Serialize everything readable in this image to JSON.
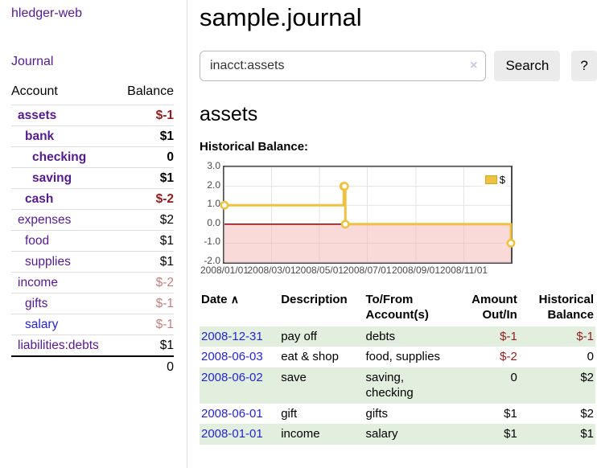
{
  "colors": {
    "link_purple": "#551a8b",
    "link_blue": "#2525cc",
    "negative_strong": "#8f1d1d",
    "negative_soft": "#c17f7f",
    "row_stripe_green": "#e2efdf",
    "chart_line_yellow": "#edc240",
    "chart_negative_pink": "#f5b4b4",
    "chart_zero_line": "#8b0000",
    "button_gray": "#ebebeb"
  },
  "sidebar": {
    "brand": "hledger-web",
    "journal_link": "Journal",
    "accounts_table": {
      "headers": {
        "account": "Account",
        "balance": "Balance"
      },
      "rows": [
        {
          "name": "assets",
          "depth": 1,
          "bold": true,
          "link": "purple",
          "balance": "$-1",
          "balance_tone": "neg-strong",
          "balance_bold": true
        },
        {
          "name": "bank",
          "depth": 2,
          "bold": true,
          "link": "purple",
          "balance": "$1",
          "balance_tone": "normal",
          "balance_bold": true
        },
        {
          "name": "checking",
          "depth": 3,
          "bold": true,
          "link": "purple",
          "balance": "0",
          "balance_tone": "normal",
          "balance_bold": true
        },
        {
          "name": "saving",
          "depth": 3,
          "bold": true,
          "link": "purple",
          "balance": "$1",
          "balance_tone": "normal",
          "balance_bold": true
        },
        {
          "name": "cash",
          "depth": 2,
          "bold": true,
          "link": "purple",
          "balance": "$-2",
          "balance_tone": "neg-strong",
          "balance_bold": true
        },
        {
          "name": "expenses",
          "depth": 1,
          "bold": false,
          "link": "purple",
          "balance": "$2",
          "balance_tone": "normal",
          "balance_bold": false
        },
        {
          "name": "food",
          "depth": 2,
          "bold": false,
          "link": "purple",
          "balance": "$1",
          "balance_tone": "normal",
          "balance_bold": false
        },
        {
          "name": "supplies",
          "depth": 2,
          "bold": false,
          "link": "purple",
          "balance": "$1",
          "balance_tone": "normal",
          "balance_bold": false
        },
        {
          "name": "income",
          "depth": 1,
          "bold": false,
          "link": "purple",
          "balance": "$-2",
          "balance_tone": "neg-soft",
          "balance_bold": false
        },
        {
          "name": "gifts",
          "depth": 2,
          "bold": false,
          "link": "purple",
          "balance": "$-1",
          "balance_tone": "neg-soft",
          "balance_bold": false
        },
        {
          "name": "salary",
          "depth": 2,
          "bold": false,
          "link": "blue",
          "balance": "$-1",
          "balance_tone": "neg-soft",
          "balance_bold": false
        },
        {
          "name": "liabilities:debts",
          "depth": 1,
          "bold": false,
          "link": "purple",
          "balance": "$1",
          "balance_tone": "normal",
          "balance_bold": false
        }
      ],
      "total": "0"
    }
  },
  "main": {
    "title": "sample.journal",
    "search": {
      "value": "inacct:assets",
      "clear_icon": "×",
      "button_label": "Search",
      "help_label": "?"
    },
    "account_heading": "assets",
    "chart_label": "Historical Balance:",
    "register_table": {
      "headers": {
        "date": "Date",
        "sort_icon": "∧",
        "description": "Description",
        "accounts": "To/From Account(s)",
        "amount": "Amount Out/In",
        "balance": "Historical Balance"
      },
      "rows": [
        {
          "date": "2008-12-31",
          "description": "pay off",
          "accounts": "debts",
          "amount": "$-1",
          "amount_neg": true,
          "balance": "$-1",
          "balance_neg": true,
          "stripe": true
        },
        {
          "date": "2008-06-03",
          "description": "eat & shop",
          "accounts": "food, supplies",
          "amount": "$-2",
          "amount_neg": true,
          "balance": "0",
          "balance_neg": false,
          "stripe": false
        },
        {
          "date": "2008-06-02",
          "description": "save",
          "accounts": "saving, checking",
          "amount": "0",
          "amount_neg": false,
          "balance": "$2",
          "balance_neg": false,
          "stripe": true
        },
        {
          "date": "2008-06-01",
          "description": "gift",
          "accounts": "gifts",
          "amount": "$1",
          "amount_neg": false,
          "balance": "$2",
          "balance_neg": false,
          "stripe": false
        },
        {
          "date": "2008-01-01",
          "description": "income",
          "accounts": "salary",
          "amount": "$1",
          "amount_neg": false,
          "balance": "$1",
          "balance_neg": false,
          "stripe": true
        }
      ]
    }
  },
  "chart_data": {
    "type": "line",
    "title": "Historical Balance:",
    "step": true,
    "x_start": "2008-01-01",
    "x_end": "2008-12-31",
    "x_ticks": [
      "2008/01/01",
      "2008/03/01",
      "2008/05/01",
      "2008/07/01",
      "2008/09/01",
      "2008/11/01"
    ],
    "y_ticks": [
      "3.0",
      "2.0",
      "1.0",
      "0.0",
      "-1.0",
      "-2.0"
    ],
    "ylim": [
      -2,
      3
    ],
    "grid": true,
    "legend": {
      "label": "$",
      "position": "top-right"
    },
    "series": [
      {
        "name": "$",
        "color": "#edc240",
        "points": [
          [
            "2008-01-01",
            1
          ],
          [
            "2008-06-01",
            2
          ],
          [
            "2008-06-02",
            2
          ],
          [
            "2008-06-03",
            0
          ],
          [
            "2008-12-31",
            -1
          ]
        ]
      }
    ],
    "negative_region": {
      "from": 0,
      "to": -2
    },
    "zero_line": true
  }
}
